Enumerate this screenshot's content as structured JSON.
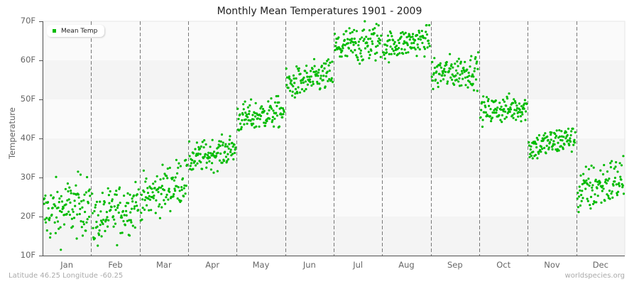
{
  "title": "Monthly Mean Temperatures 1901 - 2009",
  "ylabel": "Temperature",
  "legend": {
    "label": "Mean Temp",
    "color": "#00bb00"
  },
  "footer": {
    "left": "Latitude 46.25 Longitude -60.25",
    "right": "worldspecies.org"
  },
  "colors": {
    "point": "#00bb00",
    "band_dark": "#f4f4f4",
    "band_light": "#fafafa",
    "axis": "#555555",
    "divider": "#777777"
  },
  "chart_data": {
    "type": "scatter",
    "title": "Monthly Mean Temperatures 1901 - 2009",
    "xlabel": "",
    "ylabel": "Temperature",
    "ylim": [
      10,
      70
    ],
    "yticks": [
      "10F",
      "20F",
      "30F",
      "40F",
      "50F",
      "60F",
      "70F"
    ],
    "ytick_values": [
      10,
      20,
      30,
      40,
      50,
      60,
      70
    ],
    "categories": [
      "Jan",
      "Feb",
      "Mar",
      "Apr",
      "May",
      "Jun",
      "Jul",
      "Aug",
      "Sep",
      "Oct",
      "Nov",
      "Dec"
    ],
    "years": [
      1901,
      2009
    ],
    "points_per_month": 109,
    "legend_position": "top-left",
    "grid": "alternating horizontal bands, dashed vertical month dividers",
    "series": [
      {
        "name": "Mean Temp",
        "month_stats": [
          {
            "month": "Jan",
            "mean": 22.0,
            "min": 11.5,
            "max": 31.5,
            "trend": 1.5
          },
          {
            "month": "Feb",
            "mean": 21.0,
            "min": 12.0,
            "max": 29.5,
            "trend": 2.5
          },
          {
            "month": "Mar",
            "mean": 27.0,
            "min": 19.0,
            "max": 34.5,
            "trend": 3.0
          },
          {
            "month": "Apr",
            "mean": 36.0,
            "min": 31.0,
            "max": 41.0,
            "trend": 1.5
          },
          {
            "month": "May",
            "mean": 46.0,
            "min": 41.0,
            "max": 51.0,
            "trend": 1.0
          },
          {
            "month": "Jun",
            "mean": 55.0,
            "min": 50.5,
            "max": 61.0,
            "trend": 1.5
          },
          {
            "month": "Jul",
            "mean": 64.0,
            "min": 57.0,
            "max": 70.0,
            "trend": 1.0
          },
          {
            "month": "Aug",
            "mean": 64.5,
            "min": 59.5,
            "max": 69.0,
            "trend": 1.0
          },
          {
            "month": "Sep",
            "mean": 57.0,
            "min": 52.0,
            "max": 63.0,
            "trend": 0.5
          },
          {
            "month": "Oct",
            "mean": 47.5,
            "min": 43.0,
            "max": 52.0,
            "trend": 0.5
          },
          {
            "month": "Nov",
            "mean": 39.0,
            "min": 33.0,
            "max": 42.5,
            "trend": 1.5
          },
          {
            "month": "Dec",
            "mean": 28.0,
            "min": 19.5,
            "max": 35.5,
            "trend": 2.0
          }
        ]
      }
    ]
  }
}
